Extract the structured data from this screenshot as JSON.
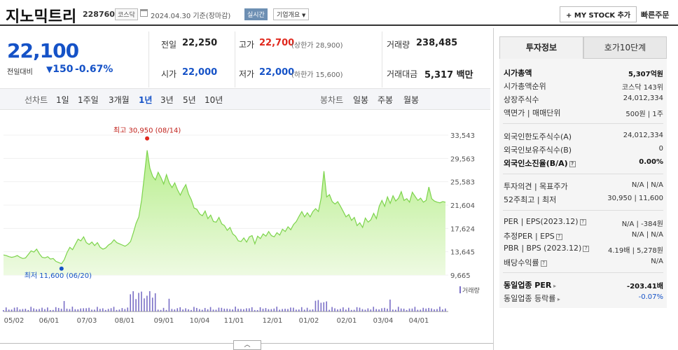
{
  "header": {
    "title": "지노믹트리",
    "code": "228760",
    "market": "코스닥",
    "date": "2024.04.30 기준(장마감)",
    "realtime": "실시간",
    "company_info": "기업개요",
    "mystock": "MY STOCK 추가",
    "quick_order": "빠른주문"
  },
  "quote": {
    "price": "22,100",
    "change_label": "전일대비",
    "change_value": "150",
    "change_pct": "-0.67%",
    "prev_label": "전일",
    "prev": "22,250",
    "high_label": "고가",
    "high": "22,700",
    "upper_limit": "(상한가 28,900)",
    "volume_label": "거래량",
    "volume": "238,485",
    "open_label": "시가",
    "open": "22,000",
    "low_label": "저가",
    "low": "22,000",
    "lower_limit": "(하한가 15,600)",
    "amount_label": "거래대금",
    "amount": "5,317 백만"
  },
  "period_bar": {
    "line_label": "선차트",
    "line_periods": [
      "1일",
      "1주일",
      "3개월",
      "1년",
      "3년",
      "5년",
      "10년"
    ],
    "selected": "1년",
    "candle_label": "봉차트",
    "candle_periods": [
      "일봉",
      "주봉",
      "월봉"
    ]
  },
  "chart_data": {
    "type": "area",
    "y_ticks": [
      "33,543",
      "29,563",
      "25,583",
      "21,604",
      "17,624",
      "13,645",
      "9,665"
    ],
    "ylim": [
      9665,
      33543
    ],
    "x_ticks": [
      "05/02",
      "06/01",
      "07/03",
      "08/01",
      "09/01",
      "10/04",
      "11/01",
      "12/01",
      "01/02",
      "02/01",
      "03/04",
      "04/01"
    ],
    "max_label": "최고 30,950 (08/14)",
    "min_label": "최저 11,600 (06/20)",
    "volume_legend": "거래량",
    "series": [
      {
        "values": [
          13100,
          13000,
          12800,
          12700,
          12800,
          13000,
          12700,
          12500,
          12600,
          13200,
          13800,
          13600,
          14100,
          13300,
          12700,
          12600,
          12800,
          12400,
          12500,
          12000,
          11800,
          11600,
          12300,
          13500,
          14400,
          14000,
          14900,
          15800,
          15500,
          16200,
          15200,
          14900,
          15300,
          14700,
          15200,
          14400,
          14100,
          14300,
          14800,
          15100,
          15700,
          15200,
          15000,
          14800,
          14600,
          14900,
          15400,
          16900,
          18500,
          19600,
          22500,
          26600,
          30950,
          27900,
          26500,
          25900,
          27200,
          26300,
          25200,
          26800,
          25400,
          24600,
          25400,
          24200,
          23300,
          24300,
          25100,
          23500,
          22500,
          21100,
          20900,
          20100,
          19800,
          20600,
          19300,
          19900,
          18800,
          18700,
          19500,
          18400,
          18100,
          17300,
          17800,
          16700,
          16300,
          15500,
          15400,
          16000,
          15300,
          16200,
          16400,
          15000,
          16300,
          15900,
          16700,
          16300,
          17100,
          16400,
          16200,
          16900,
          16500,
          17500,
          17100,
          17900,
          17400,
          18300,
          18800,
          19700,
          20500,
          19600,
          20300,
          19600,
          20500,
          21000,
          20500,
          22800,
          27400,
          23000,
          23400,
          22200,
          21800,
          22200,
          21400,
          20500,
          19600,
          20000,
          19000,
          19500,
          18100,
          18600,
          17800,
          19400,
          18700,
          19100,
          20200,
          19300,
          21400,
          22400,
          21400,
          23000,
          21900,
          23200,
          22300,
          22800,
          23900,
          22400,
          22700,
          22100,
          23800,
          23100,
          22400,
          22800,
          22100,
          22400,
          24700,
          22700,
          22300,
          22100,
          22000,
          22200,
          22100
        ]
      }
    ]
  },
  "side_panel": {
    "tab_invest": "투자정보",
    "tab_hoga": "호가10단계",
    "rows": [
      {
        "label": "시가총액",
        "value": "5,307억원"
      },
      {
        "label": "시가총액순위",
        "value": "코스닥 143위"
      },
      {
        "label": "상장주식수",
        "value": "24,012,334"
      },
      {
        "label": "액면가 | 매매단위",
        "value": "500원 | 1주"
      },
      {
        "label": "외국인한도주식수(A)",
        "value": "24,012,334"
      },
      {
        "label": "외국인보유주식수(B)",
        "value": "0"
      },
      {
        "label": "외국인소진율(B/A)",
        "value": "0.00%"
      },
      {
        "label": "투자의견 | 목표주가",
        "value": "N/A | N/A"
      },
      {
        "label": "52주최고 | 최저",
        "value": "30,950 | 11,600"
      },
      {
        "label": "PER | EPS(2023.12)",
        "value": "N/A | -384원"
      },
      {
        "label": "추정PER | EPS",
        "value": "N/A | N/A"
      },
      {
        "label": "PBR | BPS (2023.12)",
        "value": "4.19배 | 5,278원"
      },
      {
        "label": "배당수익률",
        "value": "N/A"
      },
      {
        "label": "동일업종 PER",
        "value": "-203.41배"
      },
      {
        "label": "동일업종 등락률",
        "value": "-0.07%"
      }
    ]
  },
  "toggle": "︿"
}
